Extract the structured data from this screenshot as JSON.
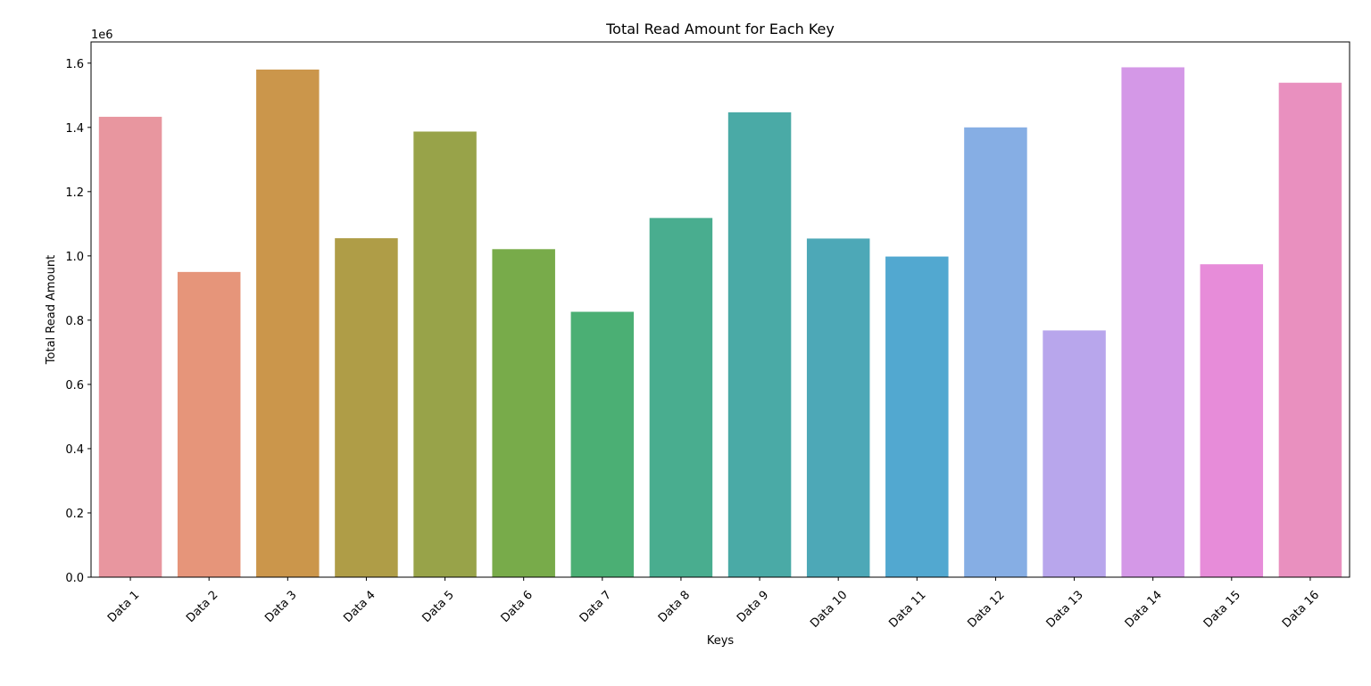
{
  "chart_data": {
    "type": "bar",
    "title": "Total Read Amount for Each Key",
    "xlabel": "Keys",
    "ylabel": "Total Read Amount",
    "y_offset_label": "1e6",
    "ylim": [
      0,
      1.666
    ],
    "yticks": [
      0.0,
      0.2,
      0.4,
      0.6,
      0.8,
      1.0,
      1.2,
      1.4,
      1.6
    ],
    "ytick_labels": [
      "0.0",
      "0.2",
      "0.4",
      "0.6",
      "0.8",
      "1.0",
      "1.2",
      "1.4",
      "1.6"
    ],
    "grid": false,
    "legend": "none",
    "categories": [
      "Data 1",
      "Data 2",
      "Data 3",
      "Data 4",
      "Data 5",
      "Data 6",
      "Data 7",
      "Data 8",
      "Data 9",
      "Data 10",
      "Data 11",
      "Data 12",
      "Data 13",
      "Data 14",
      "Data 15",
      "Data 16"
    ],
    "values": [
      1.433,
      0.95,
      1.58,
      1.055,
      1.387,
      1.021,
      0.826,
      1.118,
      1.447,
      1.054,
      0.998,
      1.4,
      0.768,
      1.587,
      0.974,
      1.539
    ],
    "colors": [
      "#e8969f",
      "#e6957a",
      "#cb964b",
      "#af9d47",
      "#98a349",
      "#78ab4a",
      "#4baf74",
      "#49ad8f",
      "#4aaaa6",
      "#4da8b7",
      "#52a8d0",
      "#86aee4",
      "#b8a6ec",
      "#d498e7",
      "#e78cd9",
      "#e990bf"
    ]
  }
}
